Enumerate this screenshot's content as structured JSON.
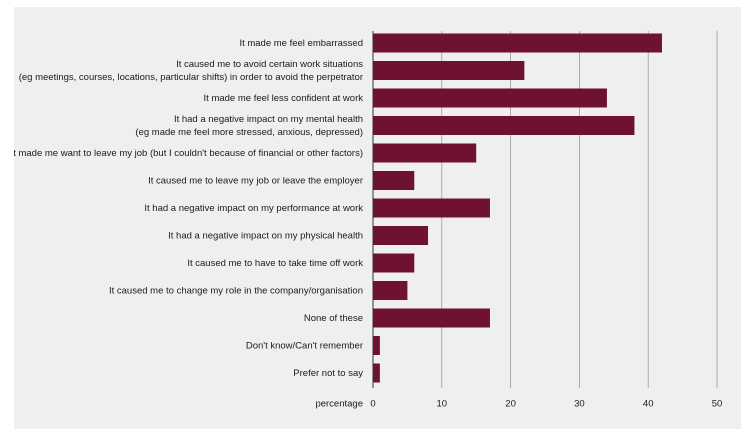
{
  "chart_data": {
    "type": "bar",
    "orientation": "horizontal",
    "categories": [
      [
        "It made me feel embarrassed"
      ],
      [
        "It caused me to avoid certain work situations",
        "(eg meetings, courses, locations, particular shifts) in order to avoid the perpetrator"
      ],
      [
        "It made me feel less confident at work"
      ],
      [
        "It had a negative impact on my mental health",
        "(eg made me feel more stressed, anxious, depressed)"
      ],
      [
        "It made me want to leave my job (but I couldn't because of financial or other factors)"
      ],
      [
        "It caused me to leave my job or leave the employer"
      ],
      [
        "It had a negative impact on my performance at work"
      ],
      [
        "It had a negative impact on my physical health"
      ],
      [
        "It caused me to have to take time off work"
      ],
      [
        "It caused me to change my role in the company/organisation"
      ],
      [
        "None of these"
      ],
      [
        "Don't know/Can't remember"
      ],
      [
        "Prefer not to say"
      ]
    ],
    "values": [
      42,
      22,
      34,
      38,
      15,
      6,
      17,
      8,
      6,
      5,
      17,
      1,
      1
    ],
    "xlabel": "percentage",
    "xlim": [
      0,
      50
    ],
    "xticks": [
      0,
      10,
      20,
      30,
      40,
      50
    ],
    "bar_color": "#6e1230",
    "grid": "vertical"
  }
}
